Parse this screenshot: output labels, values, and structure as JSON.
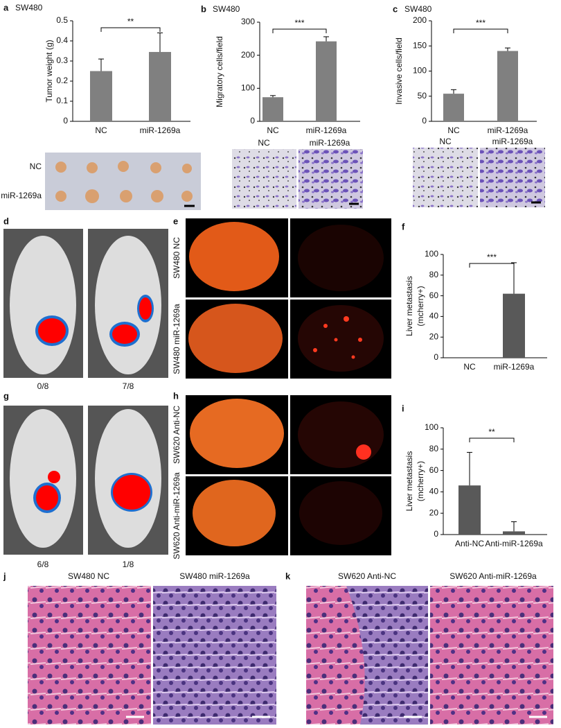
{
  "chart_data": [
    {
      "type": "bar",
      "label": "a",
      "title": "SW480",
      "ylabel": "Tumor weight (g)",
      "categories": [
        "NC",
        "miR-1269a"
      ],
      "values": [
        0.25,
        0.345
      ],
      "errors": [
        0.06,
        0.095
      ],
      "color": "#808080",
      "ylim": [
        0,
        0.5
      ],
      "yticks": [
        0,
        0.1,
        0.2,
        0.3,
        0.4,
        0.5
      ],
      "significance": "**"
    },
    {
      "type": "bar",
      "label": "b",
      "title": "SW480",
      "ylabel": "Migratory cells/field",
      "categories": [
        "NC",
        "miR-1269a"
      ],
      "values": [
        73,
        242
      ],
      "errors": [
        5,
        14
      ],
      "color": "#808080",
      "ylim": [
        0,
        300
      ],
      "yticks": [
        0,
        100,
        200,
        300
      ],
      "significance": "***"
    },
    {
      "type": "bar",
      "label": "c",
      "title": "SW480",
      "ylabel": "Invasive cells/field",
      "categories": [
        "NC",
        "miR-1269a"
      ],
      "values": [
        55,
        140
      ],
      "errors": [
        8,
        6
      ],
      "color": "#808080",
      "ylim": [
        0,
        200
      ],
      "yticks": [
        0,
        50,
        100,
        150,
        200
      ],
      "significance": "***"
    },
    {
      "type": "bar",
      "label": "f",
      "ylabel": [
        "Liver metastasis",
        "(mcherry+)"
      ],
      "categories": [
        "NC",
        "miR-1269a"
      ],
      "values": [
        0,
        62
      ],
      "errors": [
        0,
        30
      ],
      "color": "#595959",
      "ylim": [
        0,
        100
      ],
      "yticks": [
        0,
        20,
        40,
        60,
        80,
        100
      ],
      "significance": "***"
    },
    {
      "type": "bar",
      "label": "i",
      "ylabel": [
        "Liver metastasis",
        "(mcherry+)"
      ],
      "categories": [
        "Anti-NC",
        "Anti-miR-1269a"
      ],
      "values": [
        46,
        3
      ],
      "errors": [
        31,
        9
      ],
      "color": "#595959",
      "ylim": [
        0,
        100
      ],
      "yticks": [
        0,
        20,
        40,
        60,
        80,
        100
      ],
      "significance": "**"
    }
  ],
  "panels": {
    "a": {
      "rows": [
        "NC",
        "miR-1269a"
      ]
    },
    "b": {
      "images": [
        "NC",
        "miR-1269a"
      ]
    },
    "c": {
      "images": [
        "NC",
        "miR-1269a"
      ]
    },
    "d": {
      "label": "d",
      "captions": [
        "0/8",
        "7/8"
      ]
    },
    "e": {
      "label": "e",
      "rows": [
        "SW480 NC",
        "SW480 miR-1269a"
      ]
    },
    "g": {
      "label": "g",
      "captions": [
        "6/8",
        "1/8"
      ]
    },
    "h": {
      "label": "h",
      "rows": [
        "SW620 Anti-NC",
        "SW620 Anti-miR-1269a"
      ]
    },
    "j": {
      "label": "j",
      "images": [
        "SW480  NC",
        "SW480 miR-1269a"
      ]
    },
    "k": {
      "label": "k",
      "images": [
        "SW620 Anti-NC",
        "SW620 Anti-miR-1269a"
      ]
    }
  }
}
